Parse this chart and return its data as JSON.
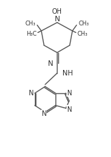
{
  "background": "#ffffff",
  "line_color": "#555555",
  "text_color": "#333333",
  "font_size": 6.5,
  "line_width": 1.0,
  "figsize": [
    1.62,
    2.3
  ],
  "dpi": 100,
  "xlim": [
    0,
    10
  ],
  "ylim": [
    0,
    14
  ]
}
